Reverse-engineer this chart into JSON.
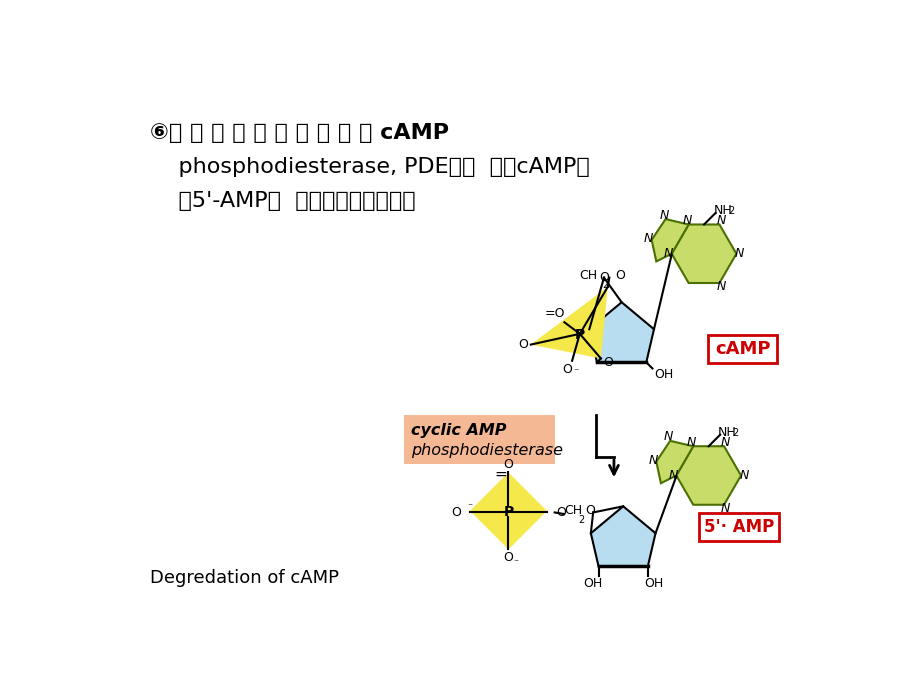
{
  "bg_color": "#ffffff",
  "line1_part1": "⑥环 腺 苷 酸 磷 酸 二 酯 酶 （ cAMP",
  "line2": "    phosphodiesterase, PDE）：  降解cAMP生",
  "line3": "    或5'-AMP，  起终止信号的作用。",
  "bottom_label": "Degredation of cAMP",
  "camp_label": "cAMP",
  "amp5_label": "5'· AMP",
  "enz_line1": "cyclic AMP",
  "enz_line2": "phosphodiesterase",
  "yellow": "#F5E84A",
  "light_blue": "#B8DCF0",
  "yellow_green": "#C8DC6A",
  "salmon": "#F5B895",
  "red_border": "#CC0000",
  "dark_green_edge": "#4a7000",
  "bond_lw": 1.5,
  "thick_lw": 2.5
}
